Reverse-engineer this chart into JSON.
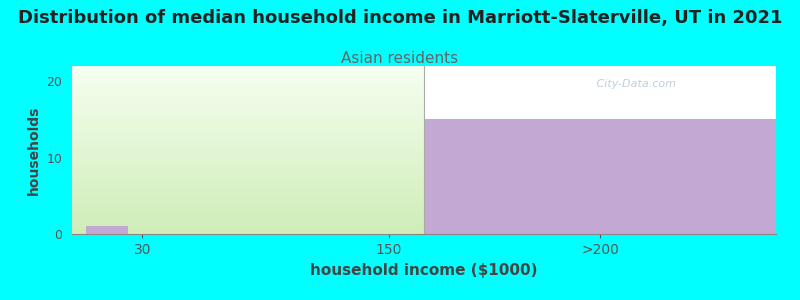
{
  "title": "Distribution of median household income in Marriott-Slaterville, UT in 2021",
  "subtitle": "Asian residents",
  "xlabel": "household income ($1000)",
  "ylabel": "households",
  "background_color": "#00FFFF",
  "plot_bg_color": "#ffffff",
  "title_fontsize": 13,
  "subtitle_fontsize": 11,
  "subtitle_color": "#666666",
  "xlabel_fontsize": 11,
  "ylabel_fontsize": 10,
  "bar_categories": [
    "30",
    "150",
    ">200"
  ],
  "bar_color_solid": "#c4a8d4",
  "green_top": "#f5fff0",
  "green_bottom": "#d0edb8",
  "ylim": [
    0,
    22
  ],
  "yticks": [
    0,
    10,
    20
  ],
  "purple_bar_height": 15,
  "small_bar_height": 1,
  "watermark": "   City-Data.com",
  "watermark_color": "#b0c8d8"
}
